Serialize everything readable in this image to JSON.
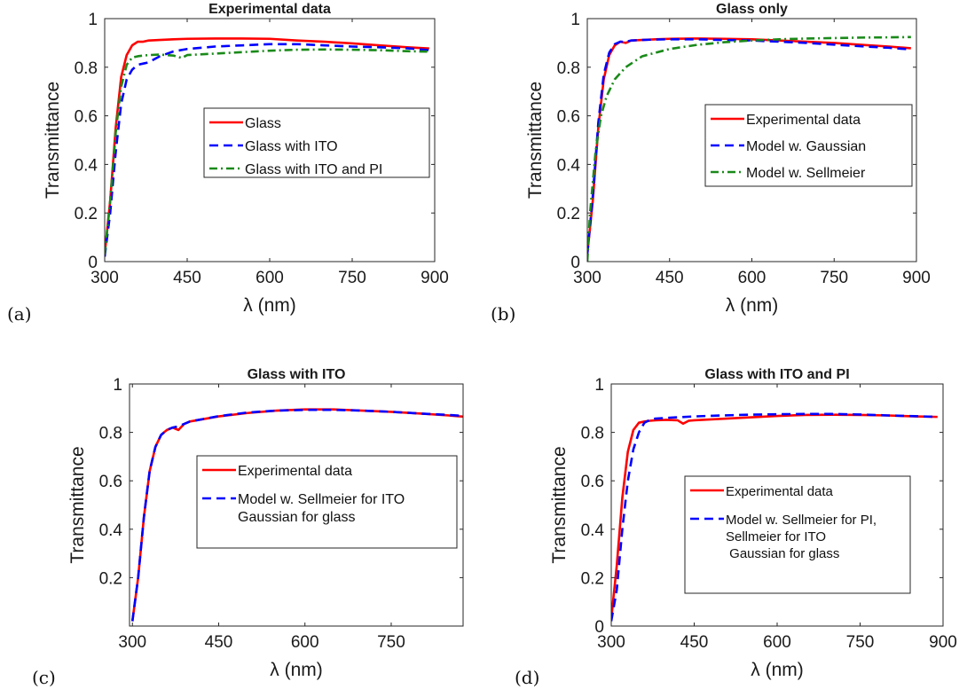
{
  "figure": {
    "ylabel": "Transmittance",
    "xlabel": "λ (nm)"
  },
  "colors": {
    "experimental": "#ff0000",
    "ito_model": "#0000ff",
    "sellmeier": "#1a8a1a"
  },
  "chart_data": [
    {
      "type": "line",
      "panel_label": "(a)",
      "title": "Experimental data",
      "xlabel": "λ (nm)",
      "ylabel": "Transmittance",
      "xlim": [
        300,
        900
      ],
      "ylim": [
        0,
        1
      ],
      "xticks": [
        300,
        450,
        600,
        750,
        900
      ],
      "yticks": [
        0,
        0.2,
        0.4,
        0.6,
        0.8,
        1
      ],
      "ytick_labels": [
        "0",
        "0.2",
        "0.4",
        "0.6",
        "0.8",
        "1"
      ],
      "legend_position": "center-right",
      "series": [
        {
          "name": "Glass",
          "color": "#ff0000",
          "style": "solid",
          "x": [
            300,
            310,
            320,
            330,
            340,
            350,
            360,
            370,
            380,
            400,
            425,
            450,
            500,
            550,
            600,
            650,
            700,
            750,
            800,
            850,
            890
          ],
          "y": [
            0.03,
            0.25,
            0.55,
            0.76,
            0.85,
            0.89,
            0.905,
            0.905,
            0.91,
            0.912,
            0.915,
            0.917,
            0.918,
            0.918,
            0.917,
            0.91,
            0.905,
            0.898,
            0.89,
            0.882,
            0.877
          ]
        },
        {
          "name": "Glass with ITO",
          "color": "#0000ff",
          "style": "dashed",
          "x": [
            300,
            310,
            320,
            330,
            340,
            350,
            360,
            370,
            380,
            400,
            425,
            450,
            500,
            550,
            600,
            650,
            700,
            750,
            800,
            850,
            890
          ],
          "y": [
            0.02,
            0.2,
            0.45,
            0.65,
            0.75,
            0.79,
            0.81,
            0.815,
            0.82,
            0.845,
            0.865,
            0.875,
            0.885,
            0.89,
            0.895,
            0.895,
            0.89,
            0.885,
            0.882,
            0.878,
            0.87
          ]
        },
        {
          "name": "Glass with ITO and PI",
          "color": "#1a8a1a",
          "style": "dashdot",
          "x": [
            300,
            310,
            320,
            330,
            340,
            350,
            360,
            370,
            380,
            400,
            425,
            440,
            450,
            500,
            550,
            600,
            650,
            700,
            750,
            800,
            850,
            890
          ],
          "y": [
            0.03,
            0.25,
            0.53,
            0.72,
            0.81,
            0.84,
            0.845,
            0.848,
            0.85,
            0.852,
            0.848,
            0.838,
            0.85,
            0.856,
            0.862,
            0.868,
            0.872,
            0.873,
            0.872,
            0.87,
            0.866,
            0.864
          ]
        }
      ]
    },
    {
      "type": "line",
      "panel_label": "(b)",
      "title": "Glass only",
      "xlabel": "λ (nm)",
      "ylabel": "Transmittance",
      "xlim": [
        300,
        900
      ],
      "ylim": [
        0,
        1
      ],
      "xticks": [
        300,
        450,
        600,
        750,
        900
      ],
      "yticks": [
        0,
        0.2,
        0.4,
        0.6,
        0.8,
        1
      ],
      "ytick_labels": [
        "0",
        "0.2",
        "0.4",
        "0.6",
        "0.8",
        "1"
      ],
      "legend_position": "center-right",
      "series": [
        {
          "name": "Experimental data",
          "color": "#ff0000",
          "style": "solid",
          "x": [
            300,
            310,
            320,
            330,
            340,
            350,
            360,
            370,
            380,
            400,
            425,
            450,
            500,
            550,
            600,
            650,
            700,
            750,
            800,
            850,
            890
          ],
          "y": [
            0.03,
            0.25,
            0.55,
            0.75,
            0.85,
            0.89,
            0.905,
            0.9,
            0.91,
            0.912,
            0.915,
            0.917,
            0.918,
            0.917,
            0.915,
            0.91,
            0.905,
            0.9,
            0.892,
            0.885,
            0.878
          ]
        },
        {
          "name": "Model w. Gaussian",
          "color": "#0000ff",
          "style": "dashed",
          "x": [
            300,
            310,
            320,
            330,
            340,
            350,
            360,
            370,
            380,
            400,
            425,
            450,
            500,
            550,
            600,
            650,
            700,
            750,
            800,
            850,
            890
          ],
          "y": [
            0.03,
            0.27,
            0.57,
            0.77,
            0.86,
            0.895,
            0.905,
            0.905,
            0.91,
            0.912,
            0.914,
            0.915,
            0.915,
            0.912,
            0.91,
            0.905,
            0.9,
            0.893,
            0.886,
            0.88,
            0.873
          ]
        },
        {
          "name": "Model w. Sellmeier",
          "color": "#1a8a1a",
          "style": "dashdot",
          "x": [
            300,
            305,
            315,
            325,
            335,
            350,
            370,
            400,
            450,
            500,
            550,
            600,
            650,
            700,
            750,
            800,
            850,
            890
          ],
          "y": [
            0.0,
            0.2,
            0.45,
            0.6,
            0.68,
            0.75,
            0.8,
            0.845,
            0.875,
            0.892,
            0.903,
            0.91,
            0.915,
            0.918,
            0.92,
            0.922,
            0.923,
            0.924
          ]
        }
      ]
    },
    {
      "type": "line",
      "panel_label": "(c)",
      "title": "Glass with ITO",
      "xlabel": "λ (nm)",
      "ylabel": "Transmittance",
      "xlim": [
        295,
        875
      ],
      "ylim": [
        0,
        1
      ],
      "xticks": [
        300,
        450,
        600,
        750
      ],
      "yticks": [
        0.2,
        0.4,
        0.6,
        0.8,
        1
      ],
      "ytick_labels": [
        "0.2",
        "0.4",
        "0.6",
        "0.8",
        "1"
      ],
      "legend_position": "center-right",
      "series": [
        {
          "name": "Experimental data",
          "color": "#ff0000",
          "style": "solid",
          "x": [
            300,
            310,
            320,
            330,
            340,
            350,
            360,
            370,
            380,
            390,
            400,
            450,
            500,
            550,
            600,
            650,
            700,
            750,
            800,
            850,
            875
          ],
          "y": [
            0.02,
            0.2,
            0.45,
            0.64,
            0.74,
            0.79,
            0.81,
            0.82,
            0.81,
            0.835,
            0.845,
            0.866,
            0.88,
            0.89,
            0.895,
            0.895,
            0.89,
            0.885,
            0.878,
            0.87,
            0.865
          ]
        },
        {
          "name": "Model w. Sellmeier for ITO\nGaussian for glass",
          "color": "#0000ff",
          "style": "dashed",
          "x": [
            300,
            310,
            320,
            330,
            340,
            350,
            360,
            370,
            380,
            390,
            400,
            450,
            500,
            550,
            600,
            650,
            700,
            750,
            800,
            850,
            875
          ],
          "y": [
            0.02,
            0.2,
            0.45,
            0.64,
            0.74,
            0.79,
            0.81,
            0.82,
            0.825,
            0.835,
            0.845,
            0.867,
            0.882,
            0.89,
            0.893,
            0.893,
            0.89,
            0.885,
            0.878,
            0.872,
            0.868
          ]
        }
      ]
    },
    {
      "type": "line",
      "panel_label": "(d)",
      "title": "Glass with ITO and PI",
      "xlabel": "λ (nm)",
      "ylabel": "Transmittance",
      "xlim": [
        300,
        900
      ],
      "ylim": [
        0,
        1
      ],
      "xticks": [
        300,
        450,
        600,
        750,
        900
      ],
      "yticks": [
        0,
        0.2,
        0.4,
        0.6,
        0.8,
        1
      ],
      "ytick_labels": [
        "0",
        "0.2",
        "0.4",
        "0.6",
        "0.8",
        "1"
      ],
      "legend_position": "center-right",
      "series": [
        {
          "name": "Experimental data",
          "color": "#ff0000",
          "style": "solid",
          "x": [
            300,
            310,
            320,
            330,
            340,
            350,
            360,
            370,
            380,
            400,
            420,
            430,
            440,
            450,
            500,
            550,
            600,
            650,
            700,
            750,
            800,
            850,
            890
          ],
          "y": [
            0.03,
            0.25,
            0.53,
            0.72,
            0.81,
            0.84,
            0.845,
            0.848,
            0.85,
            0.852,
            0.85,
            0.836,
            0.848,
            0.85,
            0.856,
            0.862,
            0.868,
            0.872,
            0.873,
            0.872,
            0.87,
            0.866,
            0.864
          ]
        },
        {
          "name": "Model w. Sellmeier for PI,\nSellmeier for ITO\n Gaussian for glass",
          "color": "#0000ff",
          "style": "dashed",
          "x": [
            300,
            310,
            320,
            330,
            340,
            350,
            360,
            370,
            380,
            400,
            450,
            500,
            550,
            600,
            650,
            700,
            750,
            800,
            850,
            890
          ],
          "y": [
            0.02,
            0.15,
            0.4,
            0.6,
            0.73,
            0.8,
            0.84,
            0.852,
            0.857,
            0.86,
            0.866,
            0.87,
            0.873,
            0.875,
            0.876,
            0.876,
            0.874,
            0.87,
            0.867,
            0.864
          ]
        }
      ]
    }
  ]
}
